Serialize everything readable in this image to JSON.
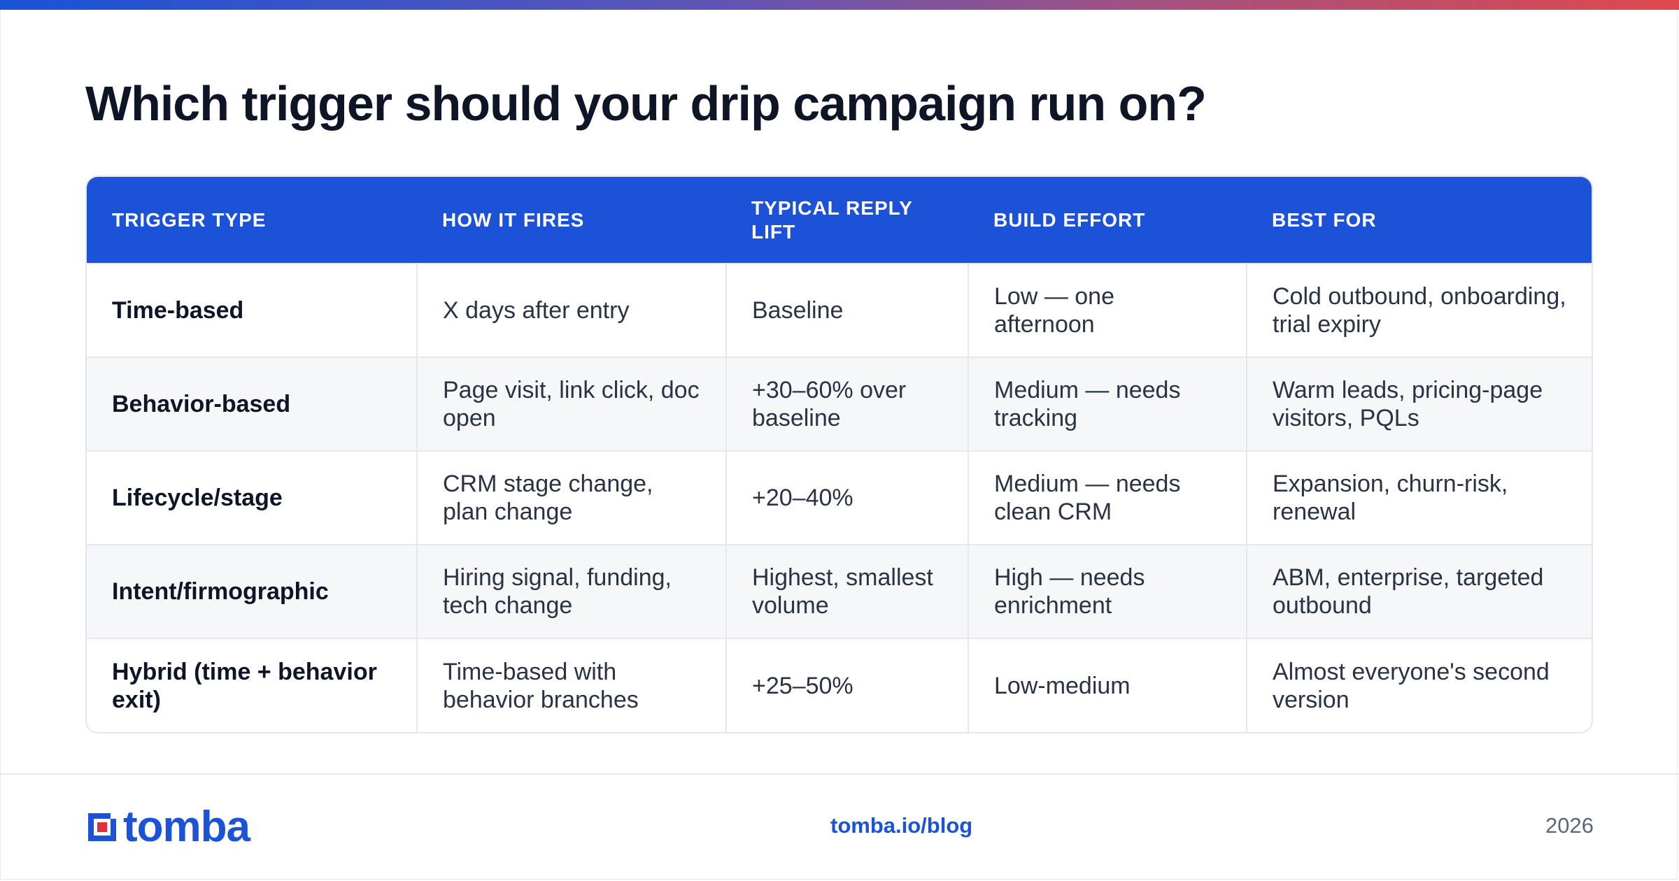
{
  "title": "Which trigger should your drip campaign run on?",
  "table": {
    "headers": [
      "TRIGGER TYPE",
      "HOW IT FIRES",
      "TYPICAL REPLY LIFT",
      "BUILD EFFORT",
      "BEST FOR"
    ],
    "rows": [
      [
        "Time-based",
        "X days after entry",
        "Baseline",
        "Low — one afternoon",
        "Cold outbound, onboarding, trial expiry"
      ],
      [
        "Behavior-based",
        "Page visit, link click, doc open",
        "+30–60% over baseline",
        "Medium — needs tracking",
        "Warm leads, pricing-page visitors, PQLs"
      ],
      [
        "Lifecycle/stage",
        "CRM stage change, plan change",
        "+20–40%",
        "Medium — needs clean CRM",
        "Expansion, churn-risk, renewal"
      ],
      [
        "Intent/firmographic",
        "Hiring signal, funding, tech change",
        "Highest, smallest volume",
        "High — needs enrichment",
        "ABM, enterprise, targeted outbound"
      ],
      [
        "Hybrid (time + behavior exit)",
        "Time-based with behavior branches",
        "+25–50%",
        "Low-medium",
        "Almost everyone's second version"
      ]
    ]
  },
  "footer": {
    "logo_text": "tomba",
    "logo_icon": "tomba-logo-icon",
    "link": "tomba.io/blog",
    "year": "2026"
  },
  "colors": {
    "accent": "#1b52d8",
    "logo_red": "#e0303a",
    "title": "#0d1526",
    "gradient": [
      "#1b52d8",
      "#5a55b8",
      "#a5527e",
      "#e0474e"
    ]
  }
}
